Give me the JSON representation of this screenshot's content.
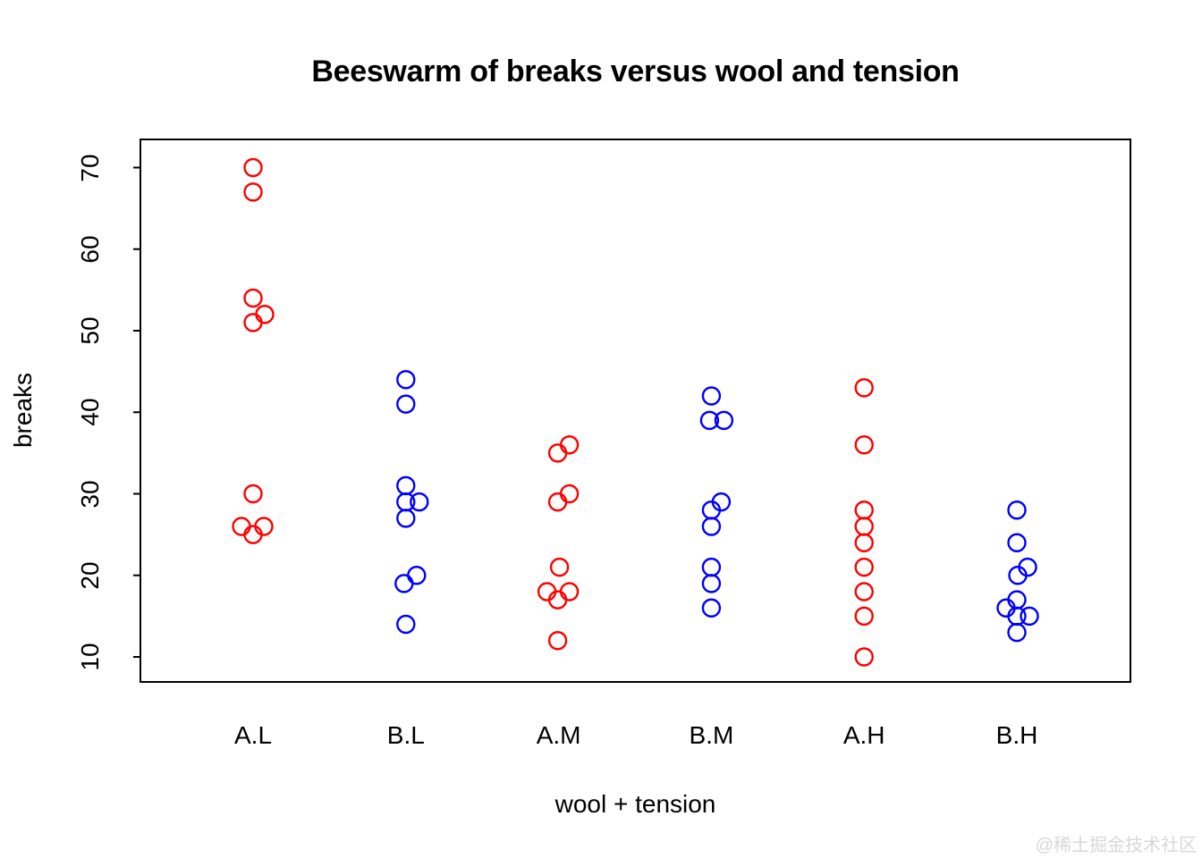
{
  "title": "Beeswarm of breaks versus wool and tension",
  "axes": {
    "xlabel": "wool + tension",
    "ylabel": "breaks",
    "y_tick_labels": [
      "10",
      "20",
      "30",
      "40",
      "50",
      "60",
      "70"
    ],
    "category_labels": [
      "A.L",
      "B.L",
      "A.M",
      "B.M",
      "A.H",
      "B.H"
    ]
  },
  "watermark": "@稀土掘金技术社区",
  "colors": {
    "wool_A": "#ff0000",
    "wool_B": "#0000ff",
    "axis": "#000000",
    "background": "#ffffff",
    "watermark": "#d8d8d8"
  },
  "chart_data": {
    "type": "scatter",
    "subtype": "beeswarm",
    "title": "Beeswarm of breaks versus wool and tension",
    "xlabel": "wool + tension",
    "ylabel": "breaks",
    "categories": [
      "A.L",
      "B.L",
      "A.M",
      "B.M",
      "A.H",
      "B.H"
    ],
    "y_ticks": [
      10,
      20,
      30,
      40,
      50,
      60,
      70
    ],
    "ylim": [
      7,
      73
    ],
    "grid": false,
    "legend": "none",
    "marker": "open-circle",
    "color_by_wool": {
      "A": "#ff0000",
      "B": "#0000ff"
    },
    "series": [
      {
        "name": "A.L",
        "wool": "A",
        "color": "#ff0000",
        "values": [
          70,
          67,
          54,
          52,
          51,
          30,
          26,
          26,
          25
        ],
        "points": [
          {
            "breaks": 70,
            "dx": 0
          },
          {
            "breaks": 67,
            "dx": 0
          },
          {
            "breaks": 54,
            "dx": 0
          },
          {
            "breaks": 52,
            "dx": 13
          },
          {
            "breaks": 51,
            "dx": 0
          },
          {
            "breaks": 30,
            "dx": 0
          },
          {
            "breaks": 26,
            "dx": -13
          },
          {
            "breaks": 26,
            "dx": 12
          },
          {
            "breaks": 25,
            "dx": 0
          }
        ]
      },
      {
        "name": "B.L",
        "wool": "B",
        "color": "#0000ff",
        "values": [
          44,
          41,
          31,
          29,
          29,
          27,
          20,
          19,
          14
        ],
        "points": [
          {
            "breaks": 44,
            "dx": 0
          },
          {
            "breaks": 41,
            "dx": 0
          },
          {
            "breaks": 31,
            "dx": 0
          },
          {
            "breaks": 29,
            "dx": 0
          },
          {
            "breaks": 29,
            "dx": 15
          },
          {
            "breaks": 27,
            "dx": 0
          },
          {
            "breaks": 20,
            "dx": 12
          },
          {
            "breaks": 19,
            "dx": -2
          },
          {
            "breaks": 14,
            "dx": 0
          }
        ]
      },
      {
        "name": "A.M",
        "wool": "A",
        "color": "#ff0000",
        "values": [
          36,
          35,
          30,
          29,
          21,
          18,
          18,
          17,
          12
        ],
        "points": [
          {
            "breaks": 36,
            "dx": 12
          },
          {
            "breaks": 35,
            "dx": -1
          },
          {
            "breaks": 30,
            "dx": 12
          },
          {
            "breaks": 29,
            "dx": -1
          },
          {
            "breaks": 21,
            "dx": 1
          },
          {
            "breaks": 18,
            "dx": -13
          },
          {
            "breaks": 18,
            "dx": 12
          },
          {
            "breaks": 17,
            "dx": -1
          },
          {
            "breaks": 12,
            "dx": -1
          }
        ]
      },
      {
        "name": "B.M",
        "wool": "B",
        "color": "#0000ff",
        "values": [
          42,
          39,
          39,
          29,
          28,
          26,
          21,
          19,
          16
        ],
        "points": [
          {
            "breaks": 42,
            "dx": 0
          },
          {
            "breaks": 39,
            "dx": -2
          },
          {
            "breaks": 39,
            "dx": 14
          },
          {
            "breaks": 29,
            "dx": 11
          },
          {
            "breaks": 28,
            "dx": 0
          },
          {
            "breaks": 26,
            "dx": 0
          },
          {
            "breaks": 21,
            "dx": 0
          },
          {
            "breaks": 19,
            "dx": 0
          },
          {
            "breaks": 16,
            "dx": 0
          }
        ]
      },
      {
        "name": "A.H",
        "wool": "A",
        "color": "#ff0000",
        "values": [
          43,
          36,
          28,
          26,
          24,
          21,
          18,
          15,
          10
        ],
        "points": [
          {
            "breaks": 43,
            "dx": 0
          },
          {
            "breaks": 36,
            "dx": 0
          },
          {
            "breaks": 28,
            "dx": 0
          },
          {
            "breaks": 26,
            "dx": 0
          },
          {
            "breaks": 24,
            "dx": 0
          },
          {
            "breaks": 21,
            "dx": 0
          },
          {
            "breaks": 18,
            "dx": 0
          },
          {
            "breaks": 15,
            "dx": 0
          },
          {
            "breaks": 10,
            "dx": 0
          }
        ]
      },
      {
        "name": "B.H",
        "wool": "B",
        "color": "#0000ff",
        "values": [
          28,
          24,
          21,
          20,
          17,
          16,
          15,
          15,
          13
        ],
        "points": [
          {
            "breaks": 28,
            "dx": 0
          },
          {
            "breaks": 24,
            "dx": 0
          },
          {
            "breaks": 21,
            "dx": 12
          },
          {
            "breaks": 20,
            "dx": 1
          },
          {
            "breaks": 17,
            "dx": 0
          },
          {
            "breaks": 16,
            "dx": -12
          },
          {
            "breaks": 15,
            "dx": 0
          },
          {
            "breaks": 15,
            "dx": 14
          },
          {
            "breaks": 13,
            "dx": 0
          }
        ]
      }
    ]
  }
}
